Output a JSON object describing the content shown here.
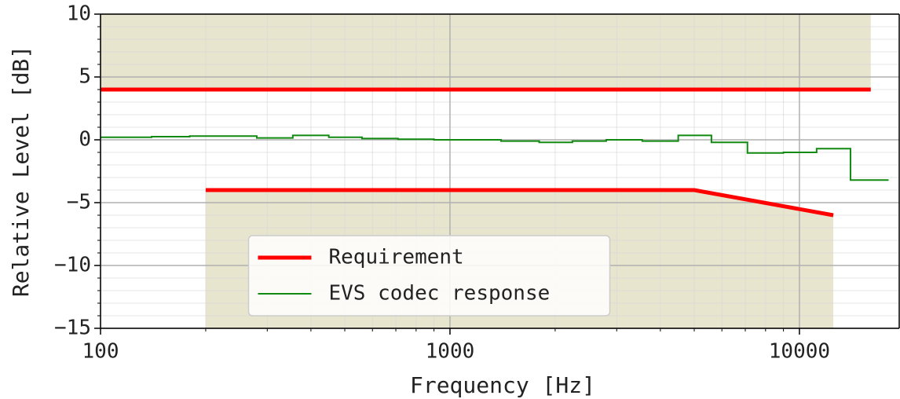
{
  "chart_data": {
    "type": "line",
    "xlabel": "Frequency [Hz]",
    "ylabel": "Relative Level [dB]",
    "xscale": "log",
    "xlim": [
      100,
      19300
    ],
    "ylim": [
      -15,
      10
    ],
    "xticks": [
      100,
      1000,
      10000
    ],
    "yticks": [
      {
        "value": -15,
        "label": "−15"
      },
      {
        "value": -10,
        "label": "−10"
      },
      {
        "value": -5,
        "label": "−5"
      },
      0,
      5,
      10
    ],
    "grid": true,
    "minor_grid": true,
    "legend": "lower center",
    "mask_fill": "#e4e1c6",
    "series": [
      {
        "name": "Requirement",
        "color": "#ff0000",
        "segments": [
          {
            "x": [
              100,
              16000
            ],
            "values": [
              4,
              4
            ],
            "fill_to": "top"
          },
          {
            "x": [
              200,
              5000,
              12500
            ],
            "values": [
              -4,
              -4,
              -6
            ],
            "fill_to": "bottom"
          }
        ]
      },
      {
        "name": "EVS codec response",
        "color": "#108a10",
        "drawstyle": "steps-post",
        "x": [
          100,
          140,
          180,
          280,
          355,
          450,
          560,
          710,
          900,
          1120,
          1400,
          1800,
          2240,
          2800,
          3550,
          4500,
          5600,
          7100,
          9000,
          11200,
          14000,
          18000
        ],
        "values": [
          0.2,
          0.25,
          0.3,
          0.15,
          0.35,
          0.2,
          0.1,
          0.05,
          0.0,
          0.0,
          -0.1,
          -0.2,
          -0.1,
          0.0,
          -0.1,
          0.35,
          -0.2,
          -1.05,
          -1.0,
          -0.7,
          -3.2,
          -3.2
        ]
      }
    ]
  }
}
